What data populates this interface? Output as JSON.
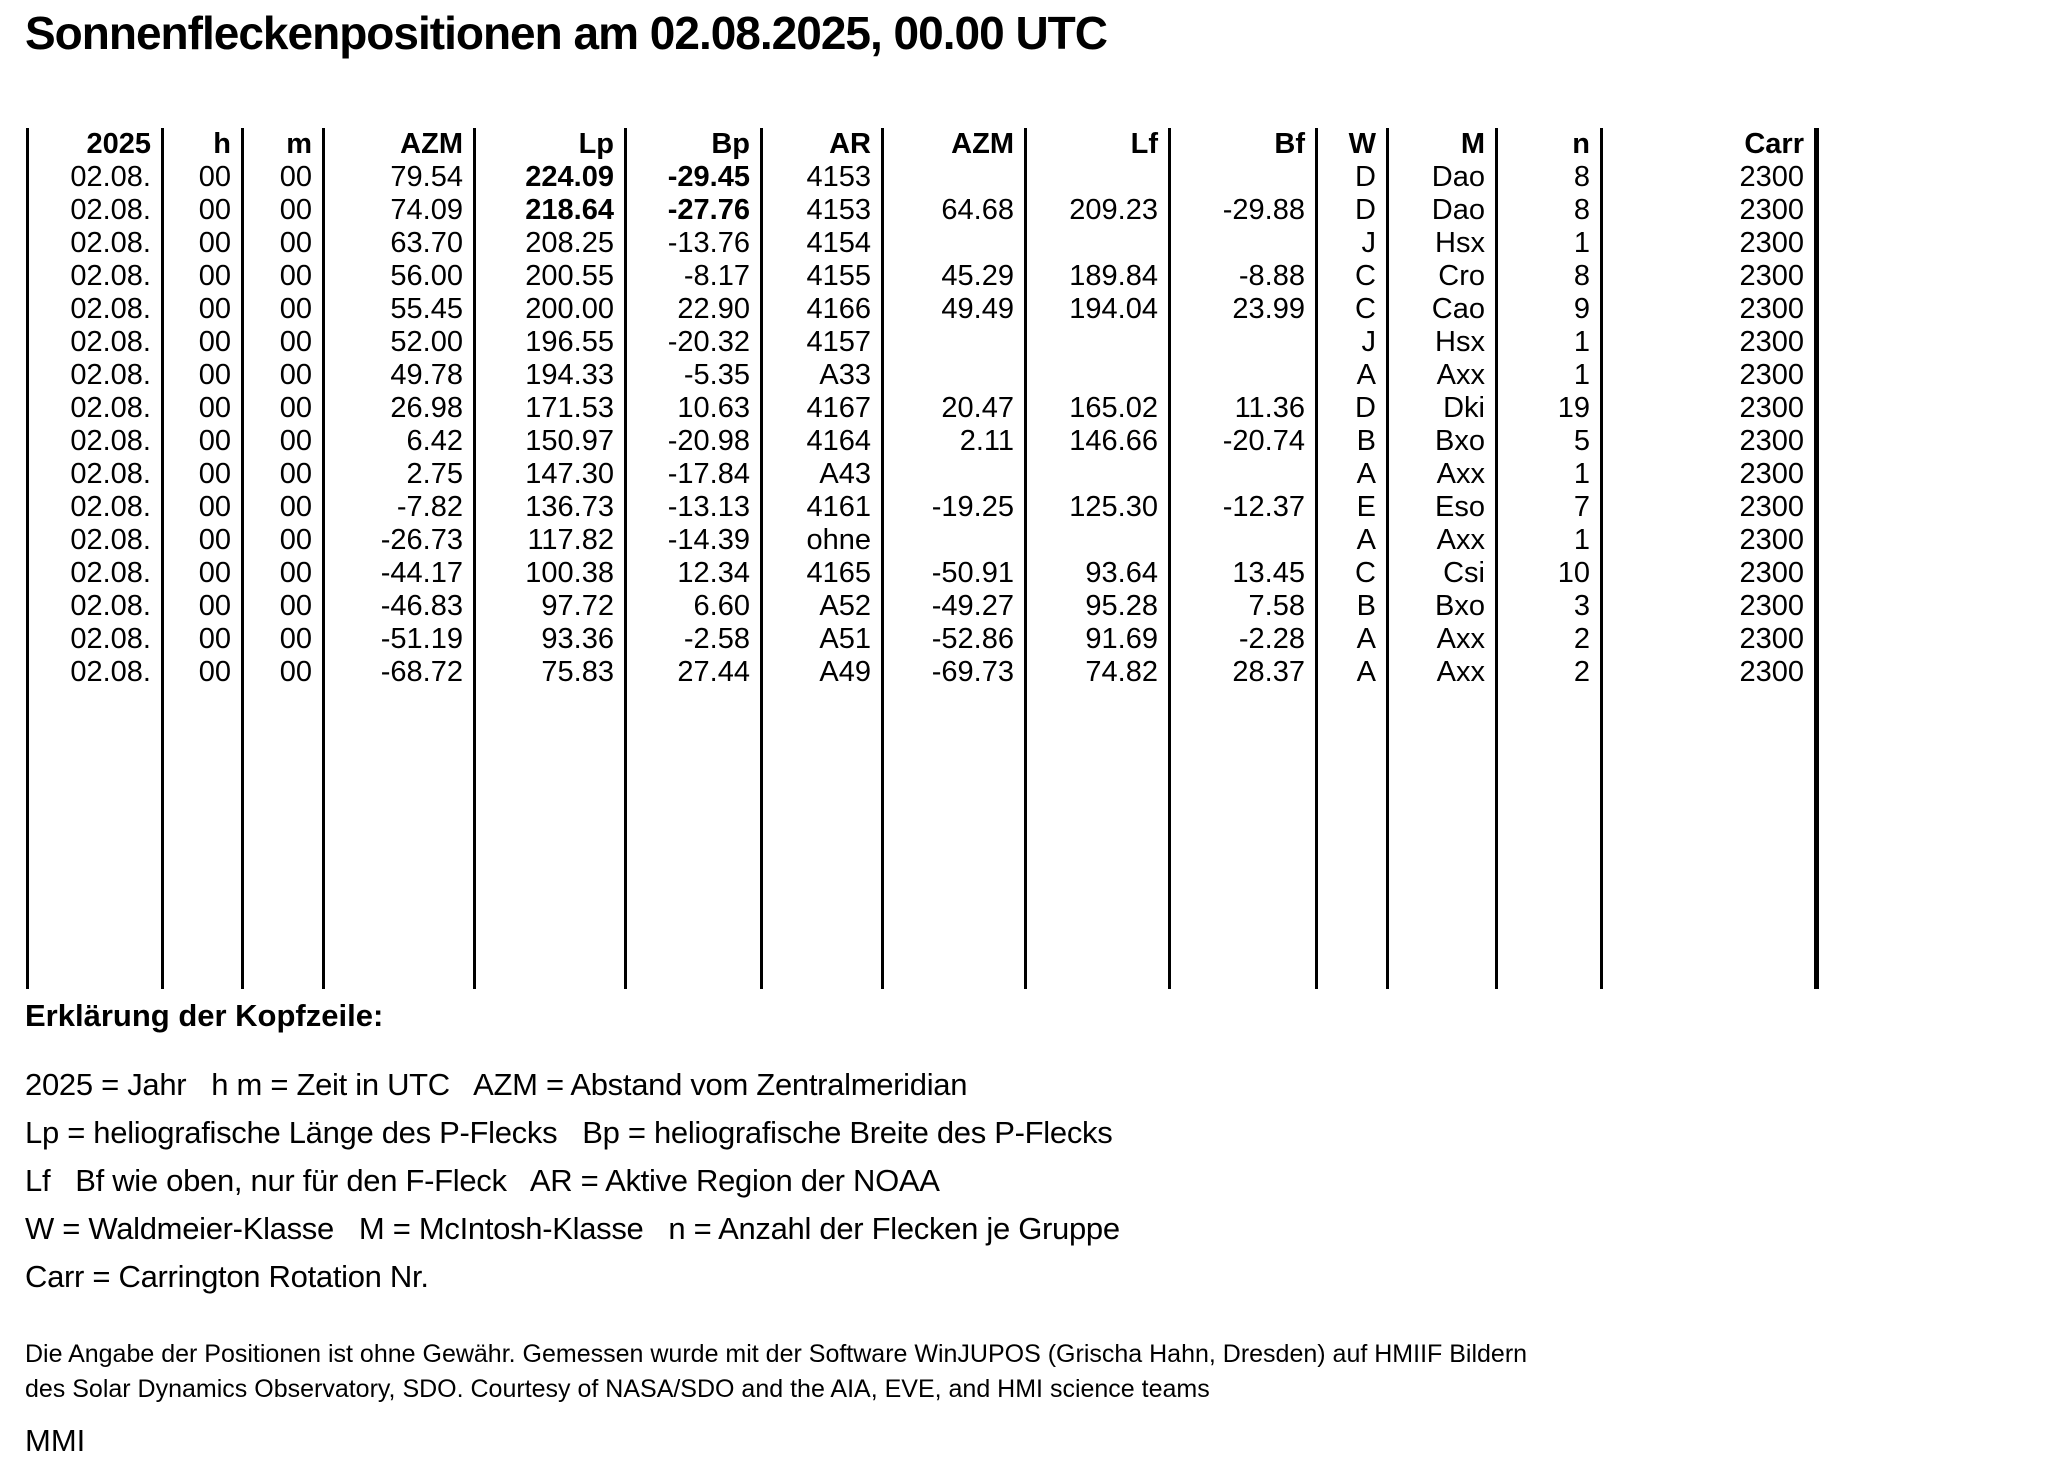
{
  "page": {
    "title": "Sonnenfleckenpositionen am 02.08.2025, 00.00 UTC",
    "signature": "MMI"
  },
  "table": {
    "columns": [
      "2025",
      "h",
      "m",
      "AZM",
      "Lp",
      "Bp",
      "AR",
      "AZM",
      "Lf",
      "Bf",
      "W",
      "M",
      "n",
      "Carr"
    ],
    "rows": [
      {
        "cells": [
          "02.08.",
          "00",
          "00",
          "79.54",
          "224.09",
          "-29.45",
          "4153",
          "",
          "",
          "",
          "D",
          "Dao",
          "8",
          "2300"
        ],
        "bold": [
          4,
          5
        ]
      },
      {
        "cells": [
          "02.08.",
          "00",
          "00",
          "74.09",
          "218.64",
          "-27.76",
          "4153",
          "64.68",
          "209.23",
          "-29.88",
          "D",
          "Dao",
          "8",
          "2300"
        ],
        "bold": [
          4,
          5
        ]
      },
      {
        "cells": [
          "02.08.",
          "00",
          "00",
          "63.70",
          "208.25",
          "-13.76",
          "4154",
          "",
          "",
          "",
          "J",
          "Hsx",
          "1",
          "2300"
        ],
        "bold": []
      },
      {
        "cells": [
          "02.08.",
          "00",
          "00",
          "56.00",
          "200.55",
          "-8.17",
          "4155",
          "45.29",
          "189.84",
          "-8.88",
          "C",
          "Cro",
          "8",
          "2300"
        ],
        "bold": []
      },
      {
        "cells": [
          "02.08.",
          "00",
          "00",
          "55.45",
          "200.00",
          "22.90",
          "4166",
          "49.49",
          "194.04",
          "23.99",
          "C",
          "Cao",
          "9",
          "2300"
        ],
        "bold": []
      },
      {
        "cells": [
          "02.08.",
          "00",
          "00",
          "52.00",
          "196.55",
          "-20.32",
          "4157",
          "",
          "",
          "",
          "J",
          "Hsx",
          "1",
          "2300"
        ],
        "bold": []
      },
      {
        "cells": [
          "02.08.",
          "00",
          "00",
          "49.78",
          "194.33",
          "-5.35",
          "A33",
          "",
          "",
          "",
          "A",
          "Axx",
          "1",
          "2300"
        ],
        "bold": []
      },
      {
        "cells": [
          "02.08.",
          "00",
          "00",
          "26.98",
          "171.53",
          "10.63",
          "4167",
          "20.47",
          "165.02",
          "11.36",
          "D",
          "Dki",
          "19",
          "2300"
        ],
        "bold": []
      },
      {
        "cells": [
          "02.08.",
          "00",
          "00",
          "6.42",
          "150.97",
          "-20.98",
          "4164",
          "2.11",
          "146.66",
          "-20.74",
          "B",
          "Bxo",
          "5",
          "2300"
        ],
        "bold": []
      },
      {
        "cells": [
          "02.08.",
          "00",
          "00",
          "2.75",
          "147.30",
          "-17.84",
          "A43",
          "",
          "",
          "",
          "A",
          "Axx",
          "1",
          "2300"
        ],
        "bold": []
      },
      {
        "cells": [
          "02.08.",
          "00",
          "00",
          "-7.82",
          "136.73",
          "-13.13",
          "4161",
          "-19.25",
          "125.30",
          "-12.37",
          "E",
          "Eso",
          "7",
          "2300"
        ],
        "bold": []
      },
      {
        "cells": [
          "02.08.",
          "00",
          "00",
          "-26.73",
          "117.82",
          "-14.39",
          "ohne",
          "",
          "",
          "",
          "A",
          "Axx",
          "1",
          "2300"
        ],
        "bold": []
      },
      {
        "cells": [
          "02.08.",
          "00",
          "00",
          "-44.17",
          "100.38",
          "12.34",
          "4165",
          "-50.91",
          "93.64",
          "13.45",
          "C",
          "Csi",
          "10",
          "2300"
        ],
        "bold": []
      },
      {
        "cells": [
          "02.08.",
          "00",
          "00",
          "-46.83",
          "97.72",
          "6.60",
          "A52",
          "-49.27",
          "95.28",
          "7.58",
          "B",
          "Bxo",
          "3",
          "2300"
        ],
        "bold": []
      },
      {
        "cells": [
          "02.08.",
          "00",
          "00",
          "-51.19",
          "93.36",
          "-2.58",
          "A51",
          "-52.86",
          "91.69",
          "-2.28",
          "A",
          "Axx",
          "2",
          "2300"
        ],
        "bold": []
      },
      {
        "cells": [
          "02.08.",
          "00",
          "00",
          "-68.72",
          "75.83",
          "27.44",
          "A49",
          "-69.73",
          "74.82",
          "28.37",
          "A",
          "Axx",
          "2",
          "2300"
        ],
        "bold": []
      }
    ]
  },
  "legend": {
    "heading": "Erklärung der Kopfzeile:",
    "lines": [
      "2025 = Jahr   h m = Zeit in UTC   AZM = Abstand vom Zentralmeridian",
      "Lp = heliografische Länge des P-Flecks   Bp = heliografische Breite des P-Flecks",
      "Lf   Bf wie oben, nur für den F-Fleck   AR = Aktive Region der NOAA",
      "W = Waldmeier-Klasse   M = McIntosh-Klasse   n = Anzahl der Flecken je Gruppe",
      "Carr = Carrington Rotation Nr."
    ]
  },
  "disclaimer": {
    "lines": [
      "Die Angabe der Positionen ist ohne Gewähr. Gemessen wurde mit der Software WinJUPOS (Grischa Hahn, Dresden) auf HMIIF Bildern",
      "des Solar Dynamics Observatory, SDO. Courtesy of NASA/SDO and the AIA, EVE, and HMI science teams"
    ]
  }
}
